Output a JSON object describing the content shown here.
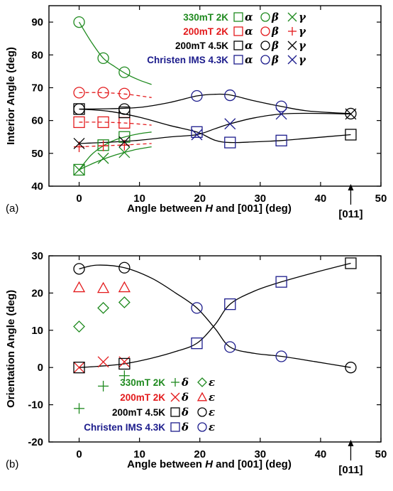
{
  "colors": {
    "green": "#1f8a1f",
    "red": "#e31a1c",
    "black": "#000000",
    "navy": "#1c1c8c"
  },
  "chart_data": [
    {
      "panel": "(a)",
      "type": "scatter",
      "xlabel_prefix": "Angle between ",
      "xlabel_var": "H",
      "xlabel_suffix": " and [001] (deg)",
      "ylabel": "Interior Angle (deg)",
      "xlim": [
        -5,
        50
      ],
      "ylim": [
        40,
        95
      ],
      "xticks": [
        0,
        10,
        20,
        30,
        40,
        50
      ],
      "yticks": [
        40,
        50,
        60,
        70,
        80,
        90
      ],
      "annotation": {
        "text": "[011]",
        "x": 45
      },
      "legend": [
        {
          "name": "330mT 2K",
          "color": "green",
          "items": [
            {
              "marker": "square",
              "sym": "α"
            },
            {
              "marker": "circle",
              "sym": "β"
            },
            {
              "marker": "x",
              "sym": "γ"
            }
          ]
        },
        {
          "name": "200mT 2K",
          "color": "red",
          "items": [
            {
              "marker": "square",
              "sym": "α"
            },
            {
              "marker": "circle",
              "sym": "β"
            },
            {
              "marker": "plus",
              "sym": "γ"
            }
          ]
        },
        {
          "name": "200mT 4.5K",
          "color": "black",
          "items": [
            {
              "marker": "square",
              "sym": "α"
            },
            {
              "marker": "circle",
              "sym": "β"
            },
            {
              "marker": "x",
              "sym": "γ"
            }
          ]
        },
        {
          "name": "Christen IMS 4.3K",
          "color": "navy",
          "items": [
            {
              "marker": "square",
              "sym": "α"
            },
            {
              "marker": "circle",
              "sym": "β"
            },
            {
              "marker": "x",
              "sym": "γ"
            }
          ]
        }
      ],
      "series": [
        {
          "color": "green",
          "marker": "circle",
          "points": [
            [
              0,
              90
            ],
            [
              4,
              79
            ],
            [
              7.5,
              74.7
            ]
          ]
        },
        {
          "color": "green",
          "marker": "square",
          "points": [
            [
              0,
              45
            ],
            [
              4,
              52.5
            ],
            [
              7.5,
              55
            ]
          ]
        },
        {
          "color": "green",
          "marker": "x",
          "points": [
            [
              0,
              45
            ],
            [
              4,
              48.5
            ],
            [
              7.5,
              50.3
            ]
          ]
        },
        {
          "color": "red",
          "marker": "circle",
          "points": [
            [
              0,
              68.5
            ],
            [
              4,
              68.5
            ],
            [
              7.5,
              68.2
            ]
          ]
        },
        {
          "color": "red",
          "marker": "square",
          "points": [
            [
              0,
              59.5
            ],
            [
              4,
              59.5
            ],
            [
              7.5,
              59.3
            ]
          ]
        },
        {
          "color": "red",
          "marker": "plus",
          "points": [
            [
              0,
              52
            ],
            [
              4,
              52.3
            ],
            [
              7.5,
              52.5
            ]
          ]
        },
        {
          "color": "black",
          "marker": "circle",
          "points": [
            [
              0,
              63.5
            ],
            [
              7.5,
              63.5
            ]
          ]
        },
        {
          "color": "black",
          "marker": "square",
          "points": [
            [
              0,
              63.5
            ],
            [
              7.5,
              62.5
            ],
            [
              45,
              55.7
            ]
          ]
        },
        {
          "color": "black",
          "marker": "x",
          "points": [
            [
              0,
              53
            ],
            [
              7.5,
              53.5
            ],
            [
              45,
              62
            ]
          ]
        },
        {
          "color": "navy",
          "marker": "circle",
          "points": [
            [
              19.5,
              67.5
            ],
            [
              25,
              67.7
            ],
            [
              33.5,
              64.3
            ]
          ]
        },
        {
          "color": "navy",
          "marker": "square",
          "points": [
            [
              19.5,
              56.5
            ],
            [
              25,
              53.3
            ],
            [
              33.5,
              53.9
            ]
          ]
        },
        {
          "color": "navy",
          "marker": "x",
          "points": [
            [
              19.5,
              55.7
            ],
            [
              25,
              59
            ],
            [
              33.5,
              62
            ]
          ]
        },
        {
          "color": "black",
          "marker": "circle",
          "points": [
            [
              45,
              62.1
            ]
          ]
        }
      ],
      "curves": [
        {
          "color": "green",
          "dash": false,
          "points": [
            [
              0,
              90
            ],
            [
              2,
              84
            ],
            [
              4,
              79
            ],
            [
              6,
              76.3
            ],
            [
              8,
              74
            ],
            [
              10,
              72.3
            ],
            [
              12,
              71
            ]
          ]
        },
        {
          "color": "green",
          "dash": false,
          "points": [
            [
              0,
              45
            ],
            [
              2,
              49.5
            ],
            [
              4,
              52.3
            ],
            [
              6,
              54.1
            ],
            [
              8,
              55.2
            ],
            [
              10,
              56
            ],
            [
              12,
              56.5
            ]
          ]
        },
        {
          "color": "green",
          "dash": false,
          "points": [
            [
              0,
              45
            ],
            [
              3,
              47.5
            ],
            [
              6,
              49.5
            ],
            [
              9,
              51
            ],
            [
              12,
              52
            ]
          ]
        },
        {
          "color": "red",
          "dash": true,
          "points": [
            [
              0,
              68.5
            ],
            [
              4,
              68.5
            ],
            [
              8,
              68
            ],
            [
              12,
              67
            ]
          ]
        },
        {
          "color": "red",
          "dash": true,
          "points": [
            [
              0,
              59.5
            ],
            [
              4,
              59.5
            ],
            [
              8,
              59.2
            ],
            [
              12,
              58.6
            ]
          ]
        },
        {
          "color": "red",
          "dash": true,
          "points": [
            [
              0,
              52
            ],
            [
              4,
              52.3
            ],
            [
              8,
              52.6
            ],
            [
              12,
              53
            ]
          ]
        },
        {
          "color": "black",
          "dash": false,
          "points": [
            [
              0,
              63.5
            ],
            [
              5,
              63.6
            ],
            [
              10,
              64
            ],
            [
              15,
              65.5
            ],
            [
              19.5,
              67.5
            ],
            [
              22.5,
              68
            ],
            [
              25,
              67.8
            ],
            [
              29,
              66
            ],
            [
              33.5,
              64.3
            ],
            [
              38,
              62.9
            ],
            [
              45,
              62.1
            ]
          ]
        },
        {
          "color": "black",
          "dash": false,
          "points": [
            [
              0,
              63.5
            ],
            [
              5,
              62.8
            ],
            [
              10,
              61
            ],
            [
              15,
              58.5
            ],
            [
              19.5,
              56.5
            ],
            [
              22.5,
              54
            ],
            [
              25,
              53.3
            ],
            [
              29,
              53.5
            ],
            [
              33.5,
              53.9
            ],
            [
              38,
              54.6
            ],
            [
              45,
              55.7
            ]
          ]
        },
        {
          "color": "black",
          "dash": false,
          "points": [
            [
              0,
              53
            ],
            [
              5,
              53.4
            ],
            [
              10,
              54
            ],
            [
              15,
              55
            ],
            [
              19.5,
              55.7
            ],
            [
              22.5,
              57.5
            ],
            [
              25,
              59
            ],
            [
              29,
              60.8
            ],
            [
              33.5,
              62
            ],
            [
              38,
              62.2
            ],
            [
              45,
              62
            ]
          ]
        }
      ]
    },
    {
      "panel": "(b)",
      "type": "scatter",
      "xlabel_prefix": "Angle between ",
      "xlabel_var": "H",
      "xlabel_suffix": " and [001] (deg)",
      "ylabel": "Orientation Angle (deg)",
      "xlim": [
        -5,
        50
      ],
      "ylim": [
        -20,
        30
      ],
      "xticks": [
        0,
        10,
        20,
        30,
        40,
        50
      ],
      "yticks": [
        -20,
        -10,
        0,
        10,
        20,
        30
      ],
      "annotation": {
        "text": "[011]",
        "x": 45
      },
      "legend": [
        {
          "name": "330mT 2K",
          "color": "green",
          "items": [
            {
              "marker": "plus",
              "sym": "δ"
            },
            {
              "marker": "diamond",
              "sym": "ε"
            }
          ]
        },
        {
          "name": "200mT 2K",
          "color": "red",
          "items": [
            {
              "marker": "x",
              "sym": "δ"
            },
            {
              "marker": "triangle",
              "sym": "ε"
            }
          ]
        },
        {
          "name": "200mT 4.5K",
          "color": "black",
          "items": [
            {
              "marker": "square",
              "sym": "δ"
            },
            {
              "marker": "circle",
              "sym": "ε"
            }
          ]
        },
        {
          "name": "Christen IMS 4.3K",
          "color": "navy",
          "items": [
            {
              "marker": "square",
              "sym": "δ"
            },
            {
              "marker": "circle",
              "sym": "ε"
            }
          ]
        }
      ],
      "series": [
        {
          "color": "green",
          "marker": "plus",
          "points": [
            [
              0,
              -11
            ],
            [
              4,
              -5
            ],
            [
              7.5,
              -2.2
            ]
          ]
        },
        {
          "color": "green",
          "marker": "diamond",
          "points": [
            [
              0,
              11
            ],
            [
              4,
              16
            ],
            [
              7.5,
              17.5
            ]
          ]
        },
        {
          "color": "red",
          "marker": "x",
          "points": [
            [
              0,
              0
            ],
            [
              4,
              1.5
            ],
            [
              7.5,
              1.5
            ]
          ]
        },
        {
          "color": "red",
          "marker": "triangle",
          "points": [
            [
              0,
              21.5
            ],
            [
              4,
              21.3
            ],
            [
              7.5,
              21.5
            ]
          ]
        },
        {
          "color": "black",
          "marker": "square",
          "points": [
            [
              0,
              0
            ],
            [
              7.5,
              1
            ],
            [
              45,
              28
            ]
          ]
        },
        {
          "color": "black",
          "marker": "circle",
          "points": [
            [
              0,
              26.5
            ],
            [
              7.5,
              26.8
            ],
            [
              45,
              0
            ]
          ]
        },
        {
          "color": "navy",
          "marker": "square",
          "points": [
            [
              19.5,
              6.5
            ],
            [
              25,
              17
            ],
            [
              33.5,
              23
            ]
          ]
        },
        {
          "color": "navy",
          "marker": "circle",
          "points": [
            [
              19.5,
              16
            ],
            [
              25,
              5.5
            ],
            [
              33.5,
              3
            ]
          ]
        }
      ],
      "curves": [
        {
          "color": "black",
          "dash": false,
          "points": [
            [
              0,
              26.5
            ],
            [
              3,
              27.5
            ],
            [
              7.5,
              26.8
            ],
            [
              12,
              24
            ],
            [
              16,
              20
            ],
            [
              19.5,
              16
            ],
            [
              22.5,
              10.5
            ],
            [
              25,
              5.5
            ],
            [
              29,
              3.8
            ],
            [
              33.5,
              3
            ],
            [
              39,
              1.6
            ],
            [
              45,
              0
            ]
          ]
        },
        {
          "color": "black",
          "dash": false,
          "points": [
            [
              0,
              0
            ],
            [
              3,
              0.3
            ],
            [
              7.5,
              1
            ],
            [
              12,
              2.5
            ],
            [
              16,
              4.3
            ],
            [
              19.5,
              6.5
            ],
            [
              22.5,
              11.5
            ],
            [
              25,
              17
            ],
            [
              29,
              20.5
            ],
            [
              33.5,
              23
            ],
            [
              39,
              25.5
            ],
            [
              45,
              28
            ]
          ]
        }
      ]
    }
  ]
}
